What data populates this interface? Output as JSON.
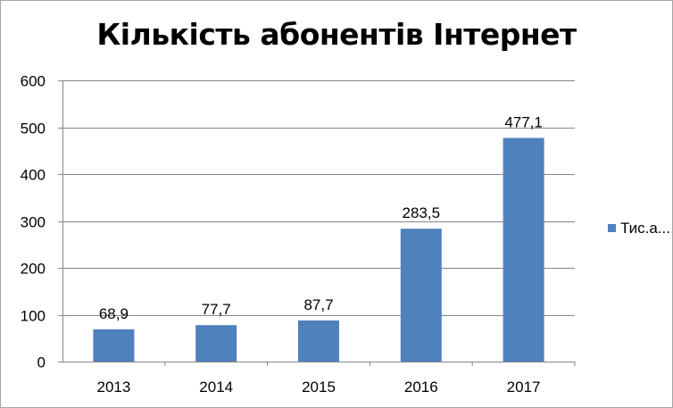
{
  "chart_data": {
    "type": "bar",
    "title": "Кількість абонентів Інтернет",
    "categories": [
      "2013",
      "2014",
      "2015",
      "2016",
      "2017"
    ],
    "series": [
      {
        "name": "Тис.а...",
        "values": [
          68.9,
          77.7,
          87.7,
          283.5,
          477.1
        ],
        "data_labels": [
          "68,9",
          "77,7",
          "87,7",
          "283,5",
          "477,1"
        ],
        "color": "#4f81bd"
      }
    ],
    "y_ticks": [
      "0",
      "100",
      "200",
      "300",
      "400",
      "500",
      "600"
    ],
    "ylim": [
      0,
      600
    ],
    "grid": true,
    "legend_position": "right"
  }
}
